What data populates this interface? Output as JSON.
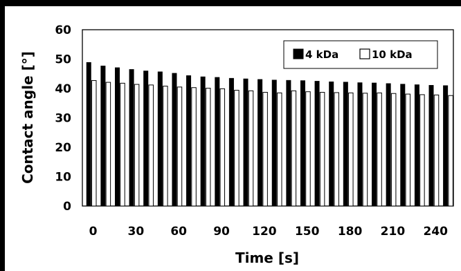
{
  "chart_data": {
    "type": "bar",
    "xlabel": "Time [s]",
    "ylabel": "Contact angle [°]",
    "ylim": [
      0,
      60
    ],
    "y_ticks": [
      0,
      10,
      20,
      30,
      40,
      50,
      60
    ],
    "x_tick_labels": [
      "0",
      "30",
      "60",
      "90",
      "120",
      "150",
      "180",
      "210",
      "240"
    ],
    "x": [
      0,
      10,
      20,
      30,
      40,
      50,
      60,
      70,
      80,
      90,
      100,
      110,
      120,
      130,
      140,
      150,
      160,
      170,
      180,
      190,
      200,
      210,
      220,
      230,
      240,
      250
    ],
    "legend_position": "top-right",
    "series": [
      {
        "name": "4 kDa",
        "color": "#000000",
        "values": [
          48.9,
          47.7,
          47.1,
          46.5,
          46.0,
          45.7,
          45.2,
          44.4,
          44.0,
          43.8,
          43.5,
          43.3,
          43.1,
          42.9,
          42.8,
          42.7,
          42.5,
          42.3,
          42.2,
          42.0,
          41.9,
          41.7,
          41.5,
          41.3,
          41.1,
          41.0
        ]
      },
      {
        "name": "10 kDa",
        "color": "#ffffff",
        "values": [
          42.7,
          42.1,
          41.8,
          41.4,
          41.2,
          40.8,
          40.5,
          40.3,
          40.1,
          39.9,
          39.4,
          39.2,
          38.7,
          38.5,
          39.2,
          38.9,
          38.7,
          38.6,
          38.5,
          38.4,
          38.5,
          38.3,
          38.1,
          37.9,
          37.8,
          37.6
        ]
      }
    ]
  }
}
